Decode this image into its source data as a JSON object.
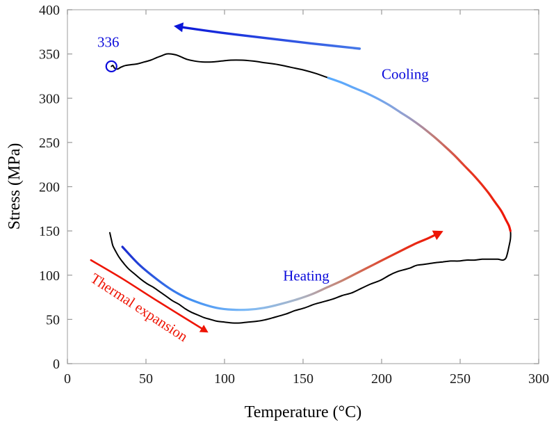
{
  "chart_data": {
    "type": "line",
    "title": "",
    "xlabel": "Temperature (°C)",
    "ylabel": "Stress (MPa)",
    "xlim": [
      0,
      300
    ],
    "ylim": [
      0,
      400
    ],
    "xticks": [
      0,
      50,
      100,
      150,
      200,
      250,
      300
    ],
    "yticks": [
      0,
      50,
      100,
      150,
      200,
      250,
      300,
      350,
      400
    ],
    "grid": false,
    "legend": "none",
    "style": {
      "background": "#ffffff",
      "box_color": "#b3b3b3",
      "tick_color": "#999999",
      "tick_label_color": "#1a1a1a",
      "axis_label_color": "#000000",
      "blue": "#0b0bdb",
      "red": "#ee1505"
    },
    "series": [
      {
        "name": "stress-temperature-loop",
        "color": "#000000",
        "width": 2,
        "points": [
          [
            27,
            148
          ],
          [
            28,
            140
          ],
          [
            29,
            133
          ],
          [
            31,
            126
          ],
          [
            33,
            120
          ],
          [
            36,
            113
          ],
          [
            39,
            107
          ],
          [
            43,
            101
          ],
          [
            47,
            95
          ],
          [
            51,
            90
          ],
          [
            55,
            86
          ],
          [
            59,
            81
          ],
          [
            63,
            76
          ],
          [
            67,
            71
          ],
          [
            71,
            67
          ],
          [
            75,
            62
          ],
          [
            79,
            58
          ],
          [
            83,
            55
          ],
          [
            87,
            52
          ],
          [
            91,
            50
          ],
          [
            95,
            48
          ],
          [
            100,
            47
          ],
          [
            105,
            46
          ],
          [
            110,
            46
          ],
          [
            115,
            47
          ],
          [
            121,
            48
          ],
          [
            127,
            50
          ],
          [
            133,
            53
          ],
          [
            139,
            56
          ],
          [
            145,
            60
          ],
          [
            151,
            63
          ],
          [
            157,
            67
          ],
          [
            163,
            70
          ],
          [
            169,
            73
          ],
          [
            175,
            77
          ],
          [
            181,
            80
          ],
          [
            187,
            85
          ],
          [
            193,
            90
          ],
          [
            199,
            94
          ],
          [
            205,
            100
          ],
          [
            210,
            104
          ],
          [
            214,
            106
          ],
          [
            218,
            108
          ],
          [
            222,
            111
          ],
          [
            226,
            112
          ],
          [
            230,
            113
          ],
          [
            234,
            114
          ],
          [
            239,
            115
          ],
          [
            244,
            116
          ],
          [
            249,
            116
          ],
          [
            254,
            117
          ],
          [
            259,
            117
          ],
          [
            264,
            118
          ],
          [
            269,
            118
          ],
          [
            274,
            118
          ],
          [
            277,
            117
          ],
          [
            279,
            119
          ],
          [
            280,
            124
          ],
          [
            281,
            132
          ],
          [
            282,
            141
          ],
          [
            282,
            150
          ],
          [
            281,
            156
          ],
          [
            279,
            163
          ],
          [
            276,
            173
          ],
          [
            272,
            183
          ],
          [
            268,
            193
          ],
          [
            263,
            204
          ],
          [
            258,
            214
          ],
          [
            252,
            225
          ],
          [
            246,
            236
          ],
          [
            240,
            246
          ],
          [
            233,
            257
          ],
          [
            226,
            267
          ],
          [
            219,
            276
          ],
          [
            212,
            284
          ],
          [
            205,
            292
          ],
          [
            198,
            299
          ],
          [
            190,
            306
          ],
          [
            182,
            312
          ],
          [
            174,
            318
          ],
          [
            166,
            323
          ],
          [
            158,
            328
          ],
          [
            150,
            332
          ],
          [
            142,
            335
          ],
          [
            134,
            338
          ],
          [
            126,
            340
          ],
          [
            118,
            342
          ],
          [
            111,
            343
          ],
          [
            104,
            343
          ],
          [
            98,
            342
          ],
          [
            92,
            341
          ],
          [
            86,
            341
          ],
          [
            81,
            342
          ],
          [
            76,
            344
          ],
          [
            72,
            347
          ],
          [
            69,
            349
          ],
          [
            66,
            350
          ],
          [
            63,
            350
          ],
          [
            60,
            348
          ],
          [
            57,
            346
          ],
          [
            53,
            343
          ],
          [
            49,
            341
          ],
          [
            45,
            339
          ],
          [
            41,
            338
          ],
          [
            37,
            337
          ],
          [
            34,
            335
          ],
          [
            32,
            333
          ],
          [
            30,
            334
          ],
          [
            29,
            337
          ],
          [
            28,
            336
          ]
        ]
      }
    ],
    "overlays": [
      {
        "name": "heating-gradient-arrow",
        "type": "gradient-arrow",
        "width": 3.2,
        "arrowhead": "end",
        "arrow_color": "#ee1505",
        "arrow_size": 16,
        "stops": [
          [
            "0%",
            "#1b2bcf"
          ],
          [
            "20%",
            "#3f8ef2"
          ],
          [
            "38%",
            "#7ebbf7"
          ],
          [
            "55%",
            "#a9b4c6"
          ],
          [
            "70%",
            "#c97d69"
          ],
          [
            "85%",
            "#e23a22"
          ],
          [
            "100%",
            "#ee1505"
          ]
        ],
        "points": [
          [
            35,
            132
          ],
          [
            45,
            113
          ],
          [
            55,
            98
          ],
          [
            65,
            85
          ],
          [
            75,
            75
          ],
          [
            85,
            68
          ],
          [
            95,
            63
          ],
          [
            105,
            61
          ],
          [
            115,
            61
          ],
          [
            125,
            63
          ],
          [
            135,
            67
          ],
          [
            145,
            72
          ],
          [
            155,
            78
          ],
          [
            165,
            86
          ],
          [
            175,
            94
          ],
          [
            185,
            103
          ],
          [
            195,
            112
          ],
          [
            205,
            121
          ],
          [
            214,
            129
          ],
          [
            222,
            136
          ],
          [
            230,
            142
          ],
          [
            237,
            148
          ]
        ]
      },
      {
        "name": "cooling-gradient-overlay",
        "type": "gradient-line",
        "width": 3.2,
        "arrowhead": "none",
        "arrow_color": "#ee1505",
        "arrow_size": 0,
        "stops": [
          [
            "0%",
            "#f01000"
          ],
          [
            "30%",
            "#e63823"
          ],
          [
            "50%",
            "#c07a75"
          ],
          [
            "65%",
            "#94a0cf"
          ],
          [
            "80%",
            "#6ba6f2"
          ],
          [
            "100%",
            "#57aaff"
          ]
        ],
        "points": [
          [
            282,
            150
          ],
          [
            281,
            156
          ],
          [
            279,
            163
          ],
          [
            276,
            173
          ],
          [
            272,
            183
          ],
          [
            268,
            193
          ],
          [
            263,
            204
          ],
          [
            258,
            214
          ],
          [
            252,
            225
          ],
          [
            246,
            236
          ],
          [
            240,
            246
          ],
          [
            233,
            257
          ],
          [
            226,
            267
          ],
          [
            219,
            276
          ],
          [
            212,
            284
          ],
          [
            205,
            292
          ],
          [
            198,
            299
          ],
          [
            190,
            306
          ],
          [
            182,
            312
          ],
          [
            174,
            318
          ],
          [
            166,
            323
          ]
        ]
      },
      {
        "name": "cooling-arrow",
        "type": "gradient-arrow",
        "width": 3.4,
        "arrowhead": "start",
        "arrow_color": "#0a16d8",
        "arrow_size": 15,
        "stops": [
          [
            "0%",
            "#0a16d8"
          ],
          [
            "100%",
            "#4679e8"
          ]
        ],
        "points": [
          [
            70,
            381
          ],
          [
            98,
            374
          ],
          [
            126,
            368
          ],
          [
            155,
            362
          ],
          [
            186,
            356
          ]
        ]
      },
      {
        "name": "thermal-expansion-arrow",
        "type": "gradient-arrow",
        "width": 2.6,
        "arrowhead": "end",
        "arrow_color": "#ee1505",
        "arrow_size": 13,
        "stops": [
          [
            "0%",
            "#ee1505"
          ],
          [
            "100%",
            "#ee1505"
          ]
        ],
        "points": [
          [
            15,
            117
          ],
          [
            35,
            96
          ],
          [
            58,
            70
          ],
          [
            88,
            37
          ]
        ]
      }
    ],
    "marker": {
      "name": "final-point-marker",
      "x": 28,
      "y": 336,
      "radius": 7.5,
      "color": "#0b0bdb",
      "stroke_width": 2.2
    },
    "annotations": [
      {
        "name": "final-stress-value",
        "text": "336",
        "x": 26,
        "y": 358,
        "color": "#0b0bdb",
        "size": 21,
        "rotate": 0
      },
      {
        "name": "cooling-label",
        "text": "Cooling",
        "x": 215,
        "y": 322,
        "color": "#0b0bdb",
        "size": 21,
        "rotate": 0
      },
      {
        "name": "heating-label",
        "text": "Heating",
        "x": 152,
        "y": 94,
        "color": "#0b0bdb",
        "size": 21,
        "rotate": 0
      },
      {
        "name": "thermal-expansion-label",
        "text": "Thermal expansion",
        "x": 44,
        "y": 59,
        "color": "#ee1505",
        "size": 21,
        "rotate": 33
      }
    ]
  }
}
